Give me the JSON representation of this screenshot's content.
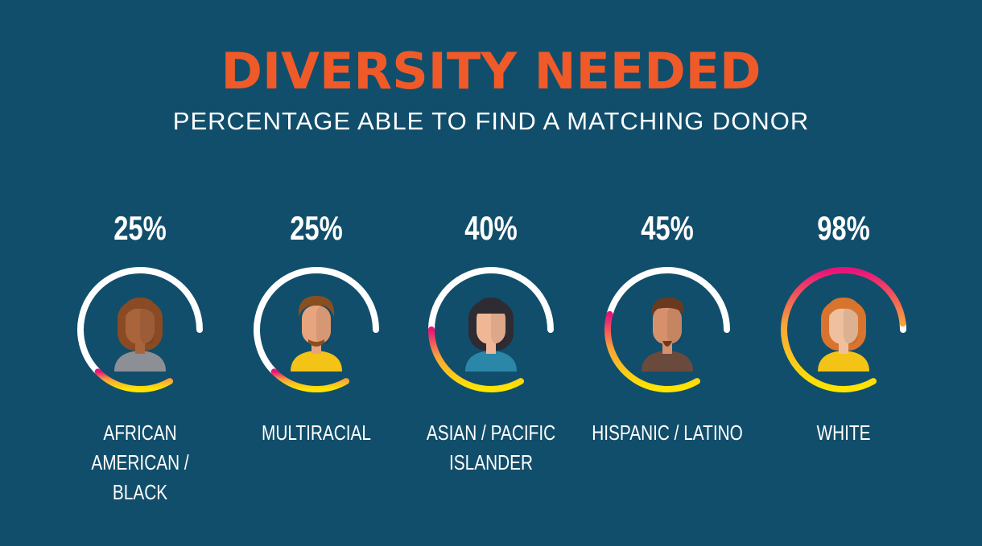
{
  "header": {
    "title": "DIVERSITY NEEDED",
    "subtitle": "PERCENTAGE ABLE TO FIND A MATCHING DONOR"
  },
  "chart_data": {
    "type": "bar",
    "title": "DIVERSITY NEEDED",
    "subtitle": "PERCENTAGE ABLE TO FIND A MATCHING DONOR",
    "categories": [
      "AFRICAN AMERICAN / BLACK",
      "MULTIRACIAL",
      "ASIAN / PACIFIC ISLANDER",
      "HISPANIC / LATINO",
      "WHITE"
    ],
    "values": [
      25,
      25,
      40,
      45,
      98
    ],
    "value_labels": [
      "25%",
      "25%",
      "40%",
      "45%",
      "98%"
    ],
    "ylim": [
      0,
      100
    ],
    "encoding": "radial gauge arcs",
    "gradient_colors": [
      "#ffe600",
      "#f8a33a",
      "#e8137b"
    ],
    "track_color": "#ffffff",
    "icons": [
      "african-american-woman-icon",
      "multiracial-man-icon",
      "asian-woman-icon",
      "hispanic-man-icon",
      "white-woman-icon"
    ]
  }
}
